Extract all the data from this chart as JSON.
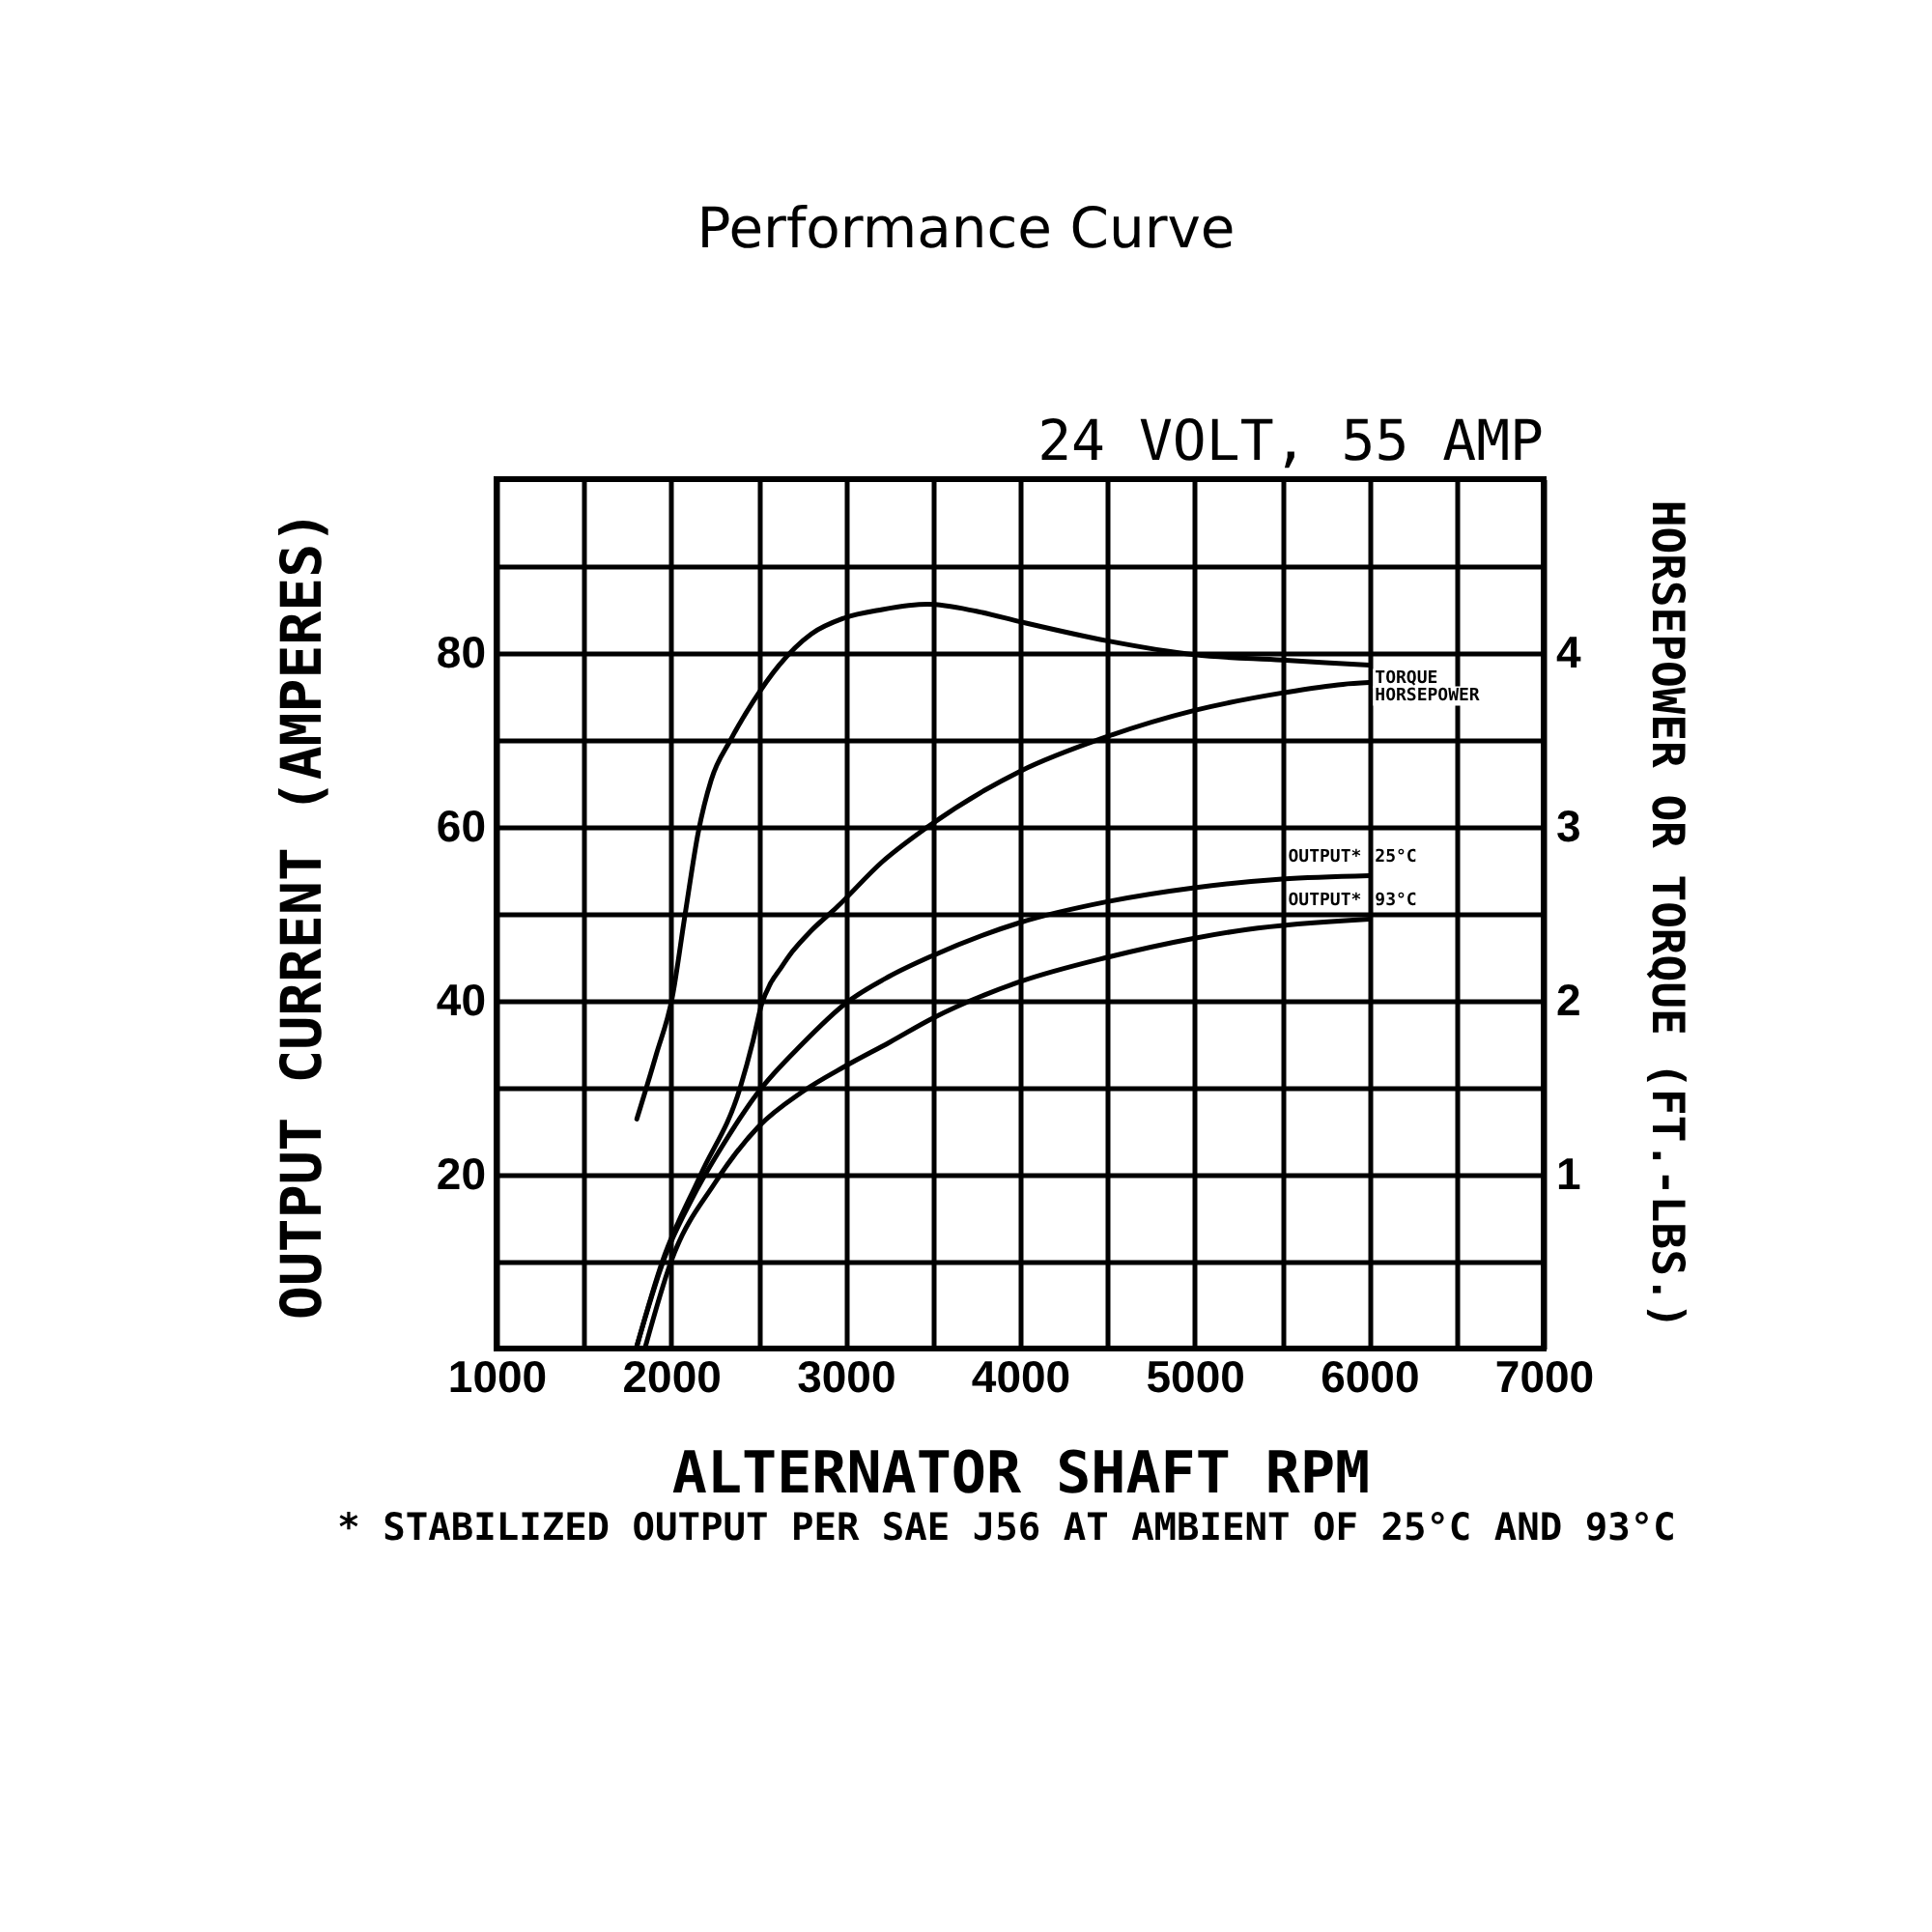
{
  "chart_data": {
    "type": "line",
    "title": "Performance Curve",
    "subtitle": "24 VOLT, 55 AMP",
    "xlabel": "ALTERNATOR SHAFT RPM",
    "ylabel": "OUTPUT CURRENT (AMPERES)",
    "y2label": "HORSEPOWER OR TORQUE (FT.-LBS.)",
    "annotations": [
      "* STABILIZED OUTPUT PER SAE J56 AT AMBIENT OF 25°C AND 93°C",
      {
        "text": "25°C",
        "x": 6000,
        "y": 54.4
      },
      {
        "text": "93°C",
        "x": 6000,
        "y": 49.4
      }
    ],
    "xlim": [
      1000,
      7000
    ],
    "xticks": [
      1000,
      {
        "value": 1500,
        "label": null
      },
      2000,
      {
        "value": 2500,
        "label": null
      },
      3000,
      {
        "value": 3500,
        "label": null
      },
      4000,
      {
        "value": 4500,
        "label": null
      },
      5000,
      {
        "value": 5500,
        "label": null
      },
      6000,
      {
        "value": 6500,
        "label": null
      },
      7000
    ],
    "ylim": [
      0,
      100
    ],
    "yticks": [
      {
        "value": 10,
        "label": null
      },
      20,
      {
        "value": 30,
        "label": null
      },
      40,
      {
        "value": 50,
        "label": null
      },
      60,
      {
        "value": 70,
        "label": null
      },
      80,
      {
        "value": 90,
        "label": null
      }
    ],
    "y2lim": [
      0,
      5
    ],
    "y2ticks": [
      1,
      2,
      3,
      4
    ],
    "grid": true,
    "series": [
      {
        "name": "TORQUE",
        "color": "#000000",
        "axis": "y2",
        "x": [
          1804,
          1915,
          2007,
          2081,
          2156,
          2230,
          2341,
          2470,
          2619,
          2804,
          2989,
          3211,
          3470,
          3750,
          4000,
          4500,
          5000,
          5500,
          6000
        ],
        "values": [
          1.32,
          1.69,
          2.02,
          2.5,
          2.97,
          3.27,
          3.5,
          3.72,
          3.93,
          4.11,
          4.2,
          4.25,
          4.28,
          4.24,
          4.18,
          4.07,
          3.99,
          3.96,
          3.93
        ]
      },
      {
        "name": "HORSEPOWER",
        "color": "#000000",
        "axis": "y2",
        "x": [
          1800,
          1950,
          2170,
          2396,
          2470,
          2519,
          2570,
          2630,
          2693,
          2800,
          2952,
          3211,
          3470,
          4000,
          4500,
          5000,
          5500,
          5850,
          6000
        ],
        "values": [
          0,
          0.5,
          1.0,
          1.5,
          1.77,
          1.98,
          2.1,
          2.19,
          2.28,
          2.4,
          2.54,
          2.8,
          3.0,
          3.32,
          3.52,
          3.67,
          3.77,
          3.82,
          3.83
        ]
      },
      {
        "name": "OUTPUT*",
        "color": "#000000",
        "x": [
          1800,
          1960,
          2130,
          2300,
          2500,
          2750,
          3000,
          3250,
          3500,
          4000,
          4500,
          5000,
          5500,
          6000
        ],
        "values": [
          0,
          10.3,
          17.6,
          23.5,
          29.5,
          35,
          39.7,
          42.8,
          45.2,
          49,
          51.4,
          53,
          54,
          54.4
        ]
      },
      {
        "name": "OUTPUT*",
        "color": "#000000",
        "x": [
          1850,
          2000,
          2250,
          2500,
          2750,
          3000,
          3250,
          3500,
          4000,
          4500,
          5000,
          5300,
          6000
        ],
        "values": [
          0,
          10,
          19,
          25.5,
          29.5,
          32.5,
          35.2,
          38,
          42.2,
          45,
          47.2,
          48.2,
          49.4
        ]
      }
    ]
  }
}
